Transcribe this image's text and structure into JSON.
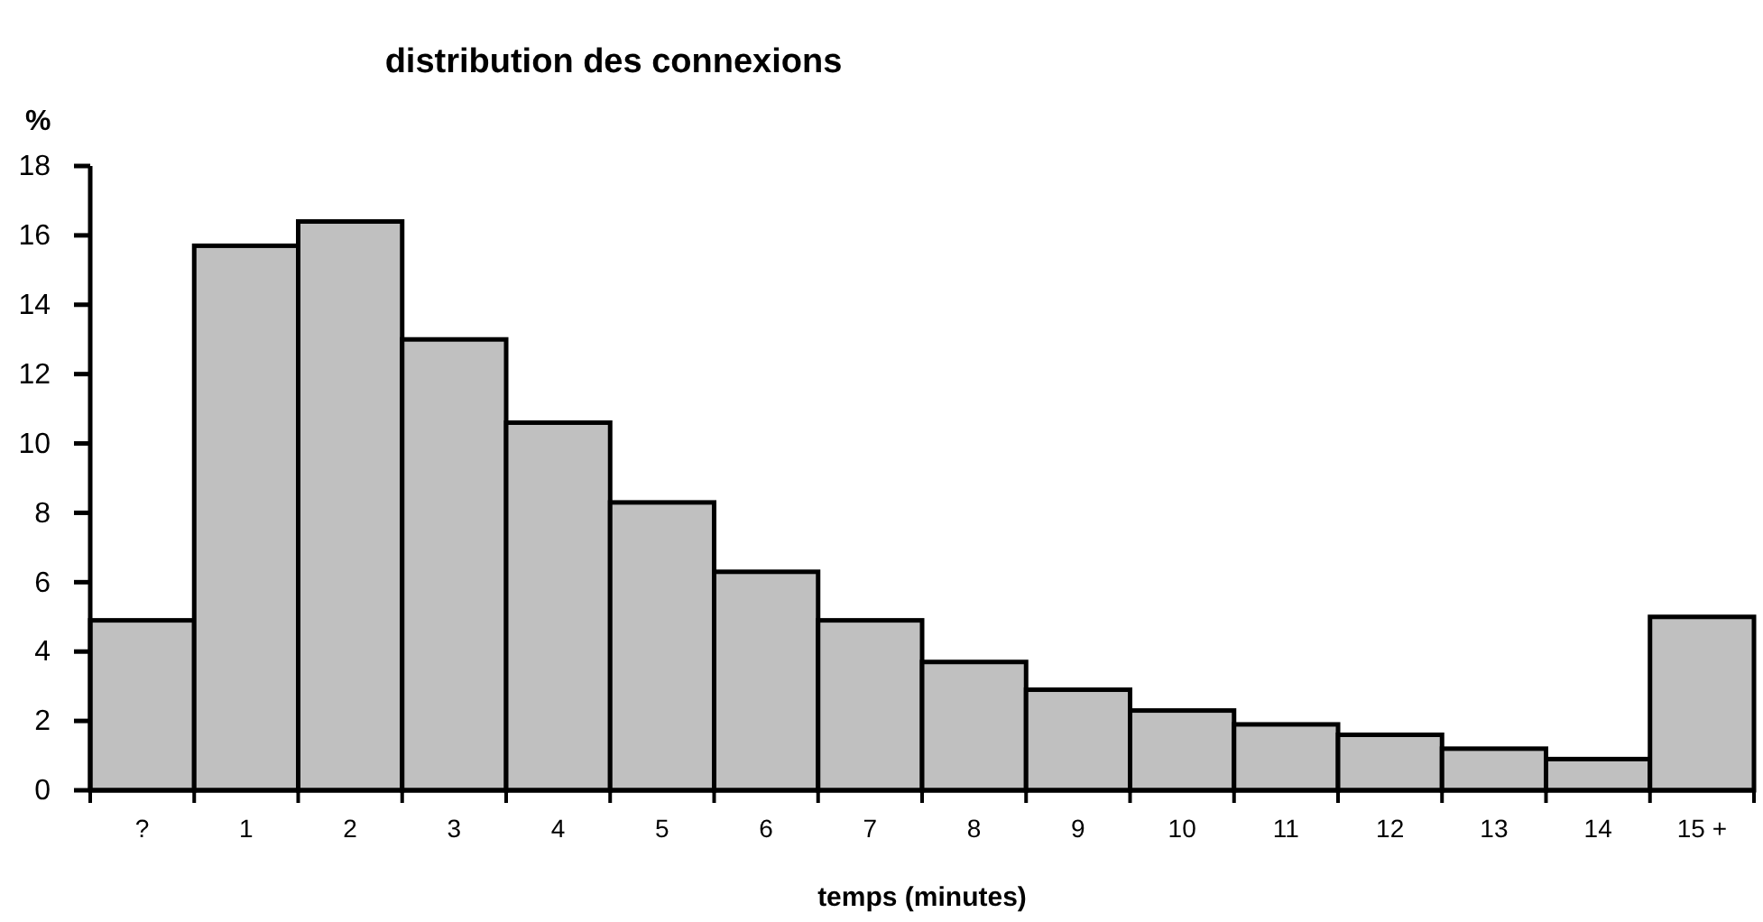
{
  "chart_data": {
    "type": "bar",
    "title": "distribution des connexions",
    "xlabel": "temps (minutes)",
    "ylabel": "%",
    "categories": [
      "?",
      "1",
      "2",
      "3",
      "4",
      "5",
      "6",
      "7",
      "8",
      "9",
      "10",
      "11",
      "12",
      "13",
      "14",
      "15 +"
    ],
    "values": [
      4.9,
      15.7,
      16.4,
      13.0,
      10.6,
      8.3,
      6.3,
      4.9,
      3.7,
      2.9,
      2.3,
      1.9,
      1.6,
      1.2,
      0.9,
      5.0
    ],
    "color": "#c0c0c0",
    "ylim": [
      0,
      18
    ],
    "yticks": [
      0,
      2,
      4,
      6,
      8,
      10,
      12,
      14,
      16,
      18
    ],
    "grid": false
  }
}
